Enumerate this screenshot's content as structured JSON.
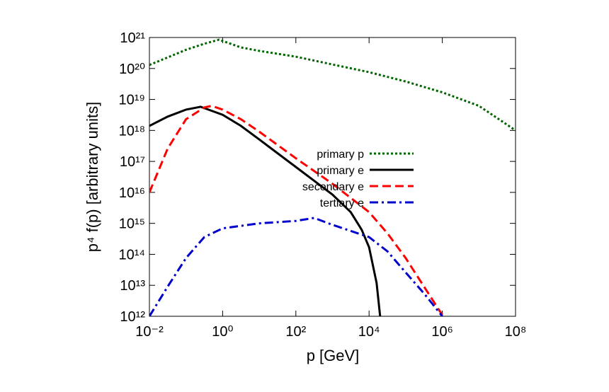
{
  "chart_data": {
    "type": "line",
    "xlabel": "p [GeV]",
    "ylabel": "p⁴ f(p) [arbitrary units]",
    "xlog": true,
    "ylog": true,
    "xlim": [
      0.01,
      100000000
    ],
    "ylim": [
      1000000000000.0,
      1e+21
    ],
    "xticks": [
      {
        "value": 0.01,
        "label": "10⁻²"
      },
      {
        "value": 1,
        "label": "10⁰"
      },
      {
        "value": 100,
        "label": "10²"
      },
      {
        "value": 10000,
        "label": "10⁴"
      },
      {
        "value": 1000000,
        "label": "10⁶"
      },
      {
        "value": 100000000,
        "label": "10⁸"
      }
    ],
    "yticks": [
      {
        "value": 1000000000000.0,
        "label": "10¹²"
      },
      {
        "value": 10000000000000.0,
        "label": "10¹³"
      },
      {
        "value": 100000000000000.0,
        "label": "10¹⁴"
      },
      {
        "value": 1000000000000000.0,
        "label": "10¹⁵"
      },
      {
        "value": 1e+16,
        "label": "10¹⁶"
      },
      {
        "value": 1e+17,
        "label": "10¹⁷"
      },
      {
        "value": 1e+18,
        "label": "10¹⁸"
      },
      {
        "value": 1e+19,
        "label": "10¹⁹"
      },
      {
        "value": 1e+20,
        "label": "10²⁰"
      },
      {
        "value": 1e+21,
        "label": "10²¹"
      }
    ],
    "legend": "right",
    "series": [
      {
        "name": "primary p",
        "color": "#006400",
        "dash": "dotted",
        "x": [
          0.01,
          0.1,
          0.316,
          0.8,
          3.16,
          10,
          100,
          1000,
          10000,
          100000,
          1000000,
          10000000,
          31600000,
          100000000
        ],
        "values": [
          1.3e+20,
          4e+20,
          6.3e+20,
          8.5e+20,
          4.8e+20,
          3.7e+20,
          2.4e+20,
          1.35e+20,
          7.6e+19,
          3.8e+19,
          1.7e+19,
          6.2e+18,
          2.5e+18,
          1e+18
        ]
      },
      {
        "name": "primary e",
        "color": "#000000",
        "dash": "solid",
        "x": [
          0.01,
          0.0316,
          0.1,
          0.25,
          1,
          3.16,
          10,
          100,
          1000,
          3160,
          6300,
          10000,
          16000,
          20000
        ],
        "values": [
          1.4e+18,
          2.8e+18,
          4.7e+18,
          5.8e+18,
          3.2e+18,
          1.4e+18,
          5.1e+17,
          6.6e+16,
          8500000000000000.0,
          2300000000000000.0,
          620000000000000.0,
          170000000000000.0,
          12000000000000.0,
          1000000000000.0
        ]
      },
      {
        "name": "secondary e",
        "color": "#ff0000",
        "dash": "dashed",
        "x": [
          0.01,
          0.0316,
          0.1,
          0.316,
          0.5,
          1,
          3.16,
          10,
          100,
          1000,
          10000,
          31600,
          100000,
          316000,
          1000000
        ],
        "values": [
          1e+16,
          2.6e+17,
          2.3e+18,
          5.5e+18,
          6.2e+18,
          4.7e+18,
          2.3e+18,
          9.1e+17,
          1.26e+17,
          1.9e+16,
          2300000000000000.0,
          480000000000000.0,
          76000000000000.0,
          9100000000000.0,
          1100000000000.0
        ]
      },
      {
        "name": "tertiary e",
        "color": "#0000cc",
        "dash": "dashdot",
        "x": [
          0.01,
          0.0316,
          0.1,
          0.316,
          1,
          10,
          100,
          316,
          1000,
          10000,
          31600,
          100000,
          316000,
          1000000
        ],
        "values": [
          1000000000000.0,
          9100000000000.0,
          76000000000000.0,
          360000000000000.0,
          690000000000000.0,
          1000000000000000.0,
          1200000000000000.0,
          1500000000000000.0,
          900000000000000.0,
          360000000000000.0,
          126000000000000.0,
          26000000000000.0,
          5500000000000.0,
          1000000000000.0
        ]
      }
    ]
  }
}
